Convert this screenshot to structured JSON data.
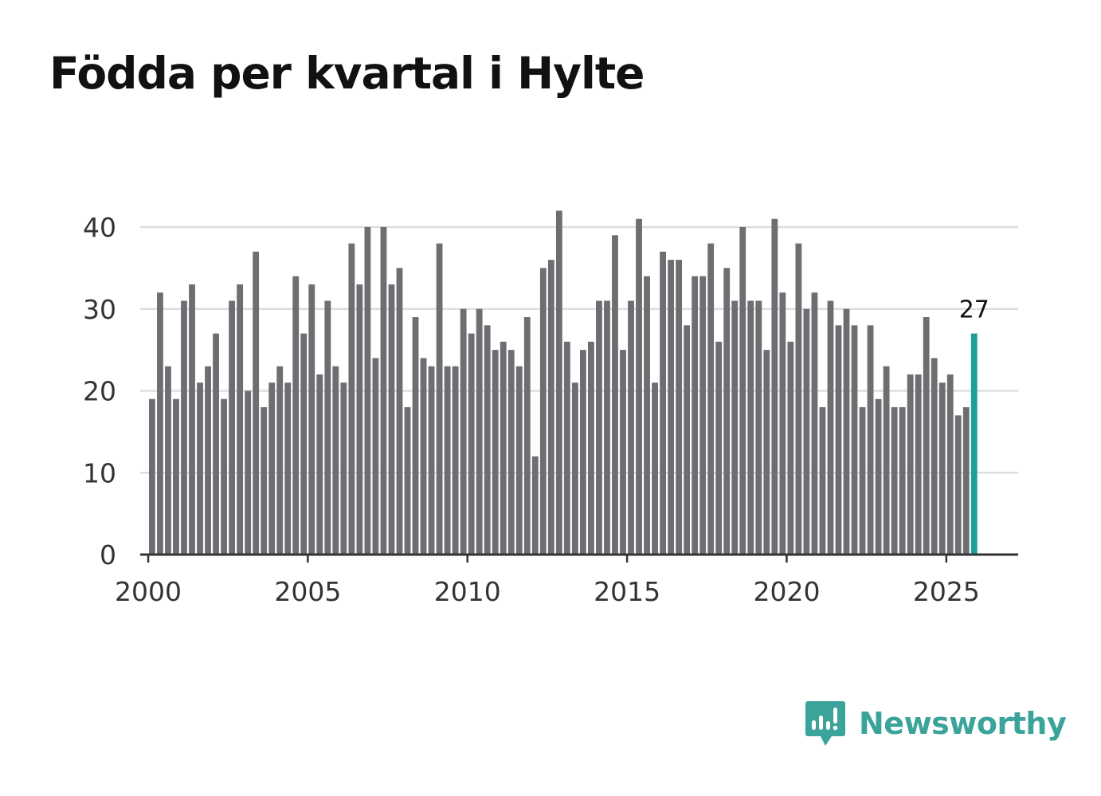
{
  "title": "Födda per kvartal i Hylte",
  "brand": {
    "name": "Newsworthy",
    "color": "#3aa39a"
  },
  "colors": {
    "bar": "#6e6d72",
    "highlight": "#1aa195",
    "grid": "#dddddd",
    "axis": "#333333"
  },
  "chart_data": {
    "type": "bar",
    "title": "Födda per kvartal i Hylte",
    "xlabel": "",
    "ylabel": "",
    "x_start": 2000,
    "x_step": 0.25,
    "xlim": [
      1999.75,
      2027.25
    ],
    "xticks": [
      2000,
      2005,
      2010,
      2015,
      2020,
      2025
    ],
    "ylim": [
      0,
      42
    ],
    "yticks": [
      0,
      10,
      20,
      30,
      40
    ],
    "grid": true,
    "values": [
      19,
      32,
      23,
      19,
      31,
      33,
      21,
      23,
      27,
      19,
      31,
      33,
      20,
      37,
      18,
      21,
      23,
      21,
      34,
      27,
      33,
      22,
      31,
      23,
      21,
      38,
      33,
      40,
      24,
      40,
      33,
      35,
      18,
      29,
      24,
      23,
      38,
      23,
      23,
      30,
      27,
      30,
      28,
      25,
      26,
      25,
      23,
      29,
      12,
      35,
      36,
      42,
      26,
      21,
      25,
      26,
      31,
      31,
      39,
      25,
      31,
      41,
      34,
      21,
      37,
      36,
      36,
      28,
      34,
      34,
      38,
      26,
      35,
      31,
      40,
      31,
      31,
      25,
      41,
      32,
      26,
      38,
      30,
      32,
      18,
      31,
      28,
      30,
      28,
      18,
      28,
      19,
      23,
      18,
      18,
      22,
      22,
      29,
      24,
      21,
      22,
      17,
      18,
      27
    ],
    "highlight_last": true,
    "annotation": {
      "text": "27",
      "target": "last"
    }
  }
}
